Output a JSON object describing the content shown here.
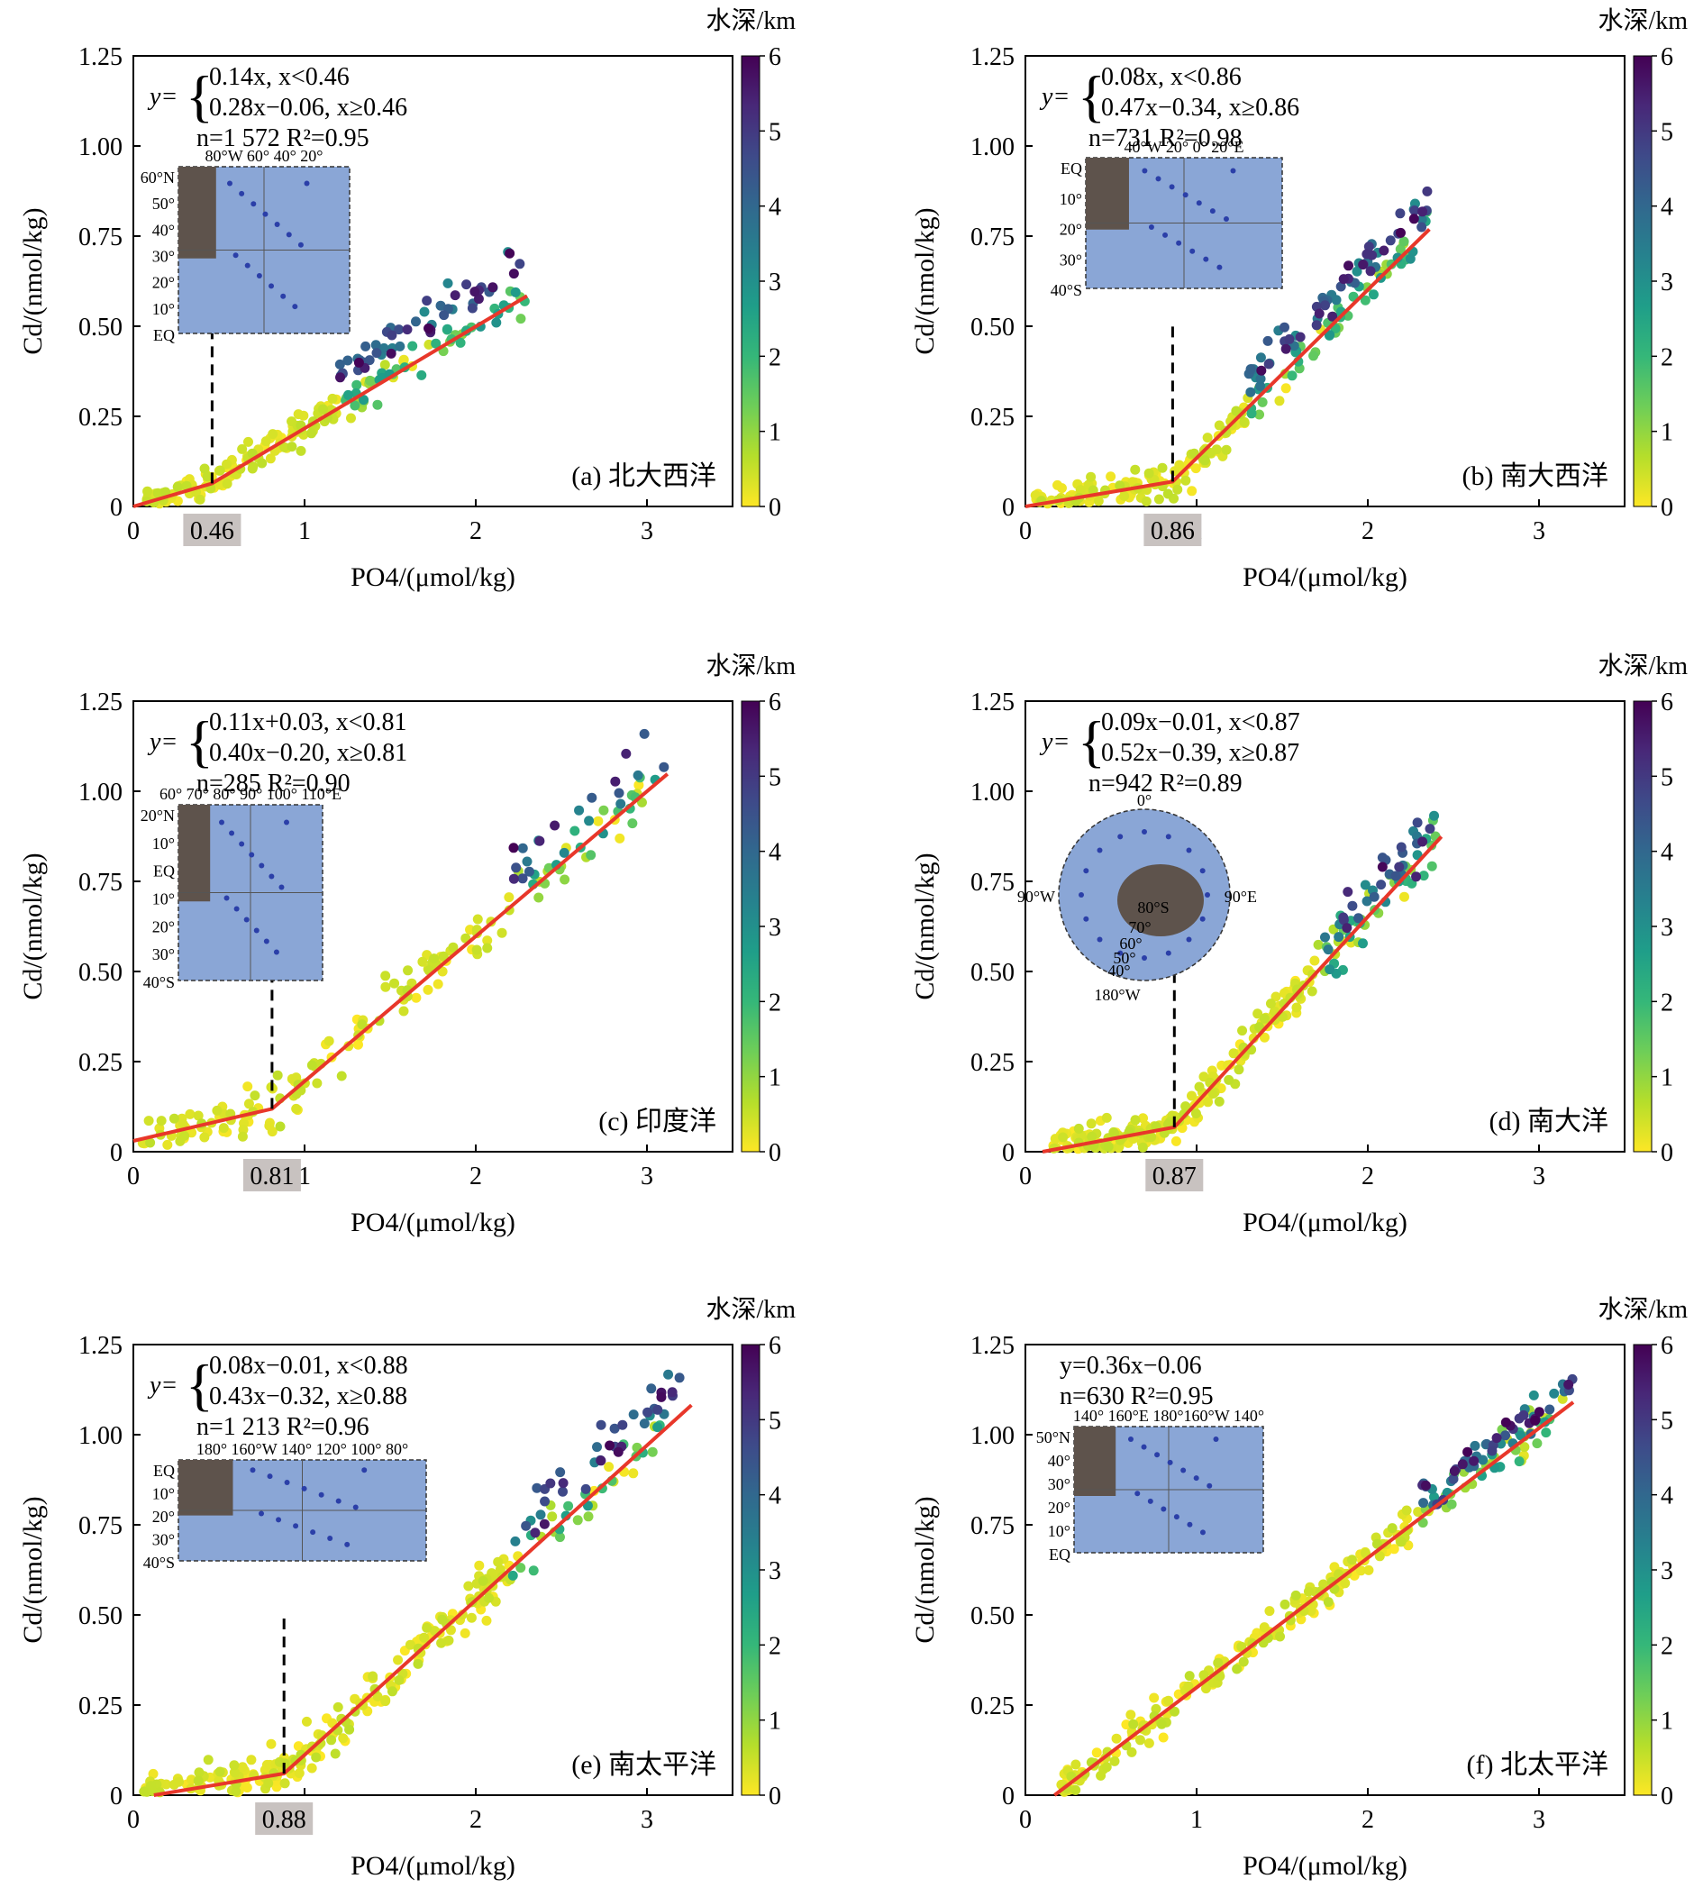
{
  "colorbar": {
    "title": "水深/km",
    "ticks": [
      "0",
      "1",
      "2",
      "3",
      "4",
      "5",
      "6"
    ],
    "colormap": "viridis_r",
    "min": 0,
    "max": 6
  },
  "threshold_box_color": "#c8c2c0",
  "fit_line_color": "#e8372a",
  "chart_data": [
    {
      "type": "scatter",
      "panel_label": "(a) 北大西洋",
      "xlabel": "PO4/(μmol/kg)",
      "ylabel": "Cd/(nmol/kg)",
      "xlim": [
        0,
        3.5
      ],
      "ylim": [
        0,
        1.25
      ],
      "xticks": [
        "0",
        "1",
        "2",
        "3"
      ],
      "yticks": [
        "0",
        "0.25",
        "0.50",
        "0.75",
        "1.00",
        "1.25"
      ],
      "threshold": "0.46",
      "eq_lines": [
        "y=",
        "0.14x,          x<0.46",
        "0.28x−0.06, x≥0.46",
        "n=1 572   R²=0.95"
      ],
      "fit_line": [
        [
          0.0,
          0.0
        ],
        [
          0.46,
          0.064
        ],
        [
          2.3,
          0.584
        ]
      ],
      "inset_labels": [
        "80°W 60°  40°  20°",
        "60°N",
        "50°",
        "40°",
        "30°",
        "20°",
        "10°",
        "EQ"
      ],
      "series": [
        {
          "points": []
        }
      ]
    },
    {
      "type": "scatter",
      "panel_label": "(b) 南大西洋",
      "xlabel": "PO4/(μmol/kg)",
      "ylabel": "Cd/(nmol/kg)",
      "xlim": [
        0,
        3.5
      ],
      "ylim": [
        0,
        1.25
      ],
      "xticks": [
        "0",
        "1",
        "2",
        "3"
      ],
      "yticks": [
        "0",
        "0.25",
        "0.50",
        "0.75",
        "1.00",
        "1.25"
      ],
      "threshold": "0.86",
      "eq_lines": [
        "y=",
        "0.08x,          x<0.86",
        "0.47x−0.34, x≥0.86",
        "n=731   R²=0.98"
      ],
      "fit_line": [
        [
          0.0,
          0.0
        ],
        [
          0.86,
          0.069
        ],
        [
          2.36,
          0.769
        ]
      ],
      "inset_labels": [
        "40°W  20°   0°   20°E",
        "EQ",
        "10°",
        "20°",
        "30°",
        "40°S"
      ],
      "series": [
        {
          "points": []
        }
      ]
    },
    {
      "type": "scatter",
      "panel_label": "(c) 印度洋",
      "xlabel": "PO4/(μmol/kg)",
      "ylabel": "Cd/(nmol/kg)",
      "xlim": [
        0,
        3.5
      ],
      "ylim": [
        0,
        1.25
      ],
      "xticks": [
        "0",
        "1",
        "2",
        "3"
      ],
      "yticks": [
        "0",
        "0.25",
        "0.50",
        "0.75",
        "1.00",
        "1.25"
      ],
      "threshold": "0.81",
      "eq_lines": [
        "y=",
        "0.11x+0.03, x<0.81",
        "0.40x−0.20, x≥0.81",
        "n=285   R²=0.90"
      ],
      "fit_line": [
        [
          0.0,
          0.03
        ],
        [
          0.81,
          0.119
        ],
        [
          3.12,
          1.048
        ]
      ],
      "inset_labels": [
        "60° 70° 80° 90° 100° 110°E",
        "20°N",
        "10°",
        "EQ",
        "10°",
        "20°",
        "30°",
        "40°S"
      ],
      "series": [
        {
          "points": []
        }
      ]
    },
    {
      "type": "scatter",
      "panel_label": "(d) 南大洋",
      "xlabel": "PO4/(μmol/kg)",
      "ylabel": "Cd/(nmol/kg)",
      "xlim": [
        0,
        3.5
      ],
      "ylim": [
        0,
        1.25
      ],
      "xticks": [
        "0",
        "1",
        "2",
        "3"
      ],
      "yticks": [
        "0",
        "0.25",
        "0.50",
        "0.75",
        "1.00",
        "1.25"
      ],
      "threshold": "0.87",
      "eq_lines": [
        "y=",
        "0.09x−0.01, x<0.87",
        "0.52x−0.39, x≥0.87",
        "n=942   R²=0.89"
      ],
      "fit_line": [
        [
          0.1,
          0.0
        ],
        [
          0.87,
          0.068
        ],
        [
          2.43,
          0.874
        ]
      ],
      "inset_labels": [
        "0°",
        "90°W",
        "90°E",
        "80°S",
        "70°",
        "60°",
        "50°",
        "40°",
        "180°W"
      ],
      "series": [
        {
          "points": []
        }
      ]
    },
    {
      "type": "scatter",
      "panel_label": "(e) 南太平洋",
      "xlabel": "PO4/(μmol/kg)",
      "ylabel": "Cd/(nmol/kg)",
      "xlim": [
        0,
        3.5
      ],
      "ylim": [
        0,
        1.25
      ],
      "xticks": [
        "0",
        "1",
        "2",
        "3"
      ],
      "yticks": [
        "0",
        "0.25",
        "0.50",
        "0.75",
        "1.00",
        "1.25"
      ],
      "threshold": "0.88",
      "eq_lines": [
        "y=",
        "0.08x−0.01, x<0.88",
        "0.43x−0.32, x≥0.88",
        "n=1 213   R²=0.96"
      ],
      "fit_line": [
        [
          0.12,
          0.0
        ],
        [
          0.88,
          0.06
        ],
        [
          3.26,
          1.082
        ]
      ],
      "inset_labels": [
        "180°  160°W 140° 120° 100°  80°",
        "EQ",
        "10°",
        "20°",
        "30°",
        "40°S"
      ],
      "series": [
        {
          "points": []
        }
      ]
    },
    {
      "type": "scatter",
      "panel_label": "(f) 北太平洋",
      "xlabel": "PO4/(μmol/kg)",
      "ylabel": "Cd/(nmol/kg)",
      "xlim": [
        0,
        3.5
      ],
      "ylim": [
        0,
        1.25
      ],
      "xticks": [
        "0",
        "1",
        "2",
        "3"
      ],
      "yticks": [
        "0",
        "0.25",
        "0.50",
        "0.75",
        "1.00",
        "1.25"
      ],
      "threshold": "",
      "eq_lines": [
        "y=0.36x−0.06",
        "n=630   R²=0.95"
      ],
      "fit_line": [
        [
          0.17,
          0.0
        ],
        [
          3.2,
          1.09
        ]
      ],
      "inset_labels": [
        "140° 160°E 180°160°W 140°",
        "50°N",
        "40°",
        "30°",
        "20°",
        "10°",
        "EQ"
      ],
      "series": [
        {
          "points": []
        }
      ]
    }
  ]
}
